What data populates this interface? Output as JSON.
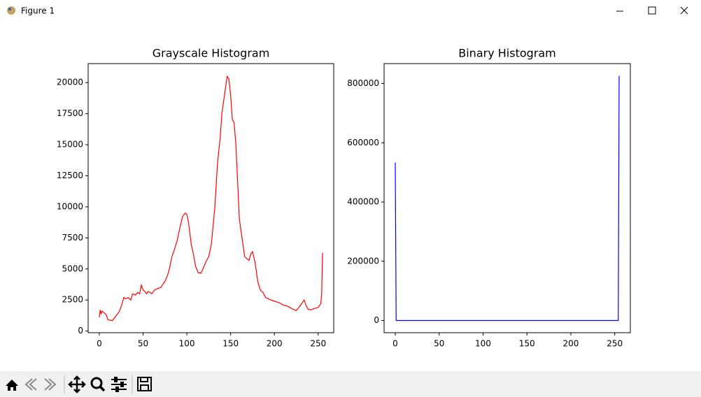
{
  "window": {
    "title": "Figure 1"
  },
  "chart_data": [
    {
      "type": "line",
      "title": "Grayscale Histogram",
      "color": "#ff0000",
      "x": [
        0,
        1,
        2,
        3,
        5,
        8,
        10,
        15,
        20,
        23,
        26,
        28,
        30,
        33,
        36,
        38,
        41,
        44,
        46,
        48,
        50,
        52,
        54,
        56,
        60,
        63,
        66,
        70,
        75,
        78,
        80,
        83,
        86,
        89,
        92,
        95,
        98,
        100,
        102,
        105,
        108,
        110,
        113,
        116,
        119,
        122,
        125,
        128,
        132,
        135,
        138,
        140,
        143,
        146,
        148,
        150,
        152,
        154,
        156,
        158,
        160,
        163,
        166,
        169,
        171,
        173,
        175,
        178,
        181,
        184,
        187,
        190,
        193,
        196,
        200,
        205,
        210,
        215,
        220,
        225,
        228,
        231,
        234,
        236,
        238,
        241,
        245,
        250,
        253,
        254,
        255
      ],
      "values": [
        1100,
        1700,
        1400,
        1600,
        1500,
        1300,
        900,
        850,
        1300,
        1600,
        2200,
        2700,
        2600,
        2700,
        2500,
        3000,
        2900,
        3100,
        3000,
        3700,
        3300,
        3200,
        3000,
        3200,
        3000,
        3300,
        3400,
        3500,
        4000,
        4500,
        5000,
        6000,
        6600,
        7300,
        8300,
        9200,
        9500,
        9400,
        8700,
        7000,
        6000,
        5200,
        4700,
        4650,
        5100,
        5600,
        6000,
        7000,
        10000,
        13500,
        15500,
        17500,
        19000,
        20500,
        20300,
        19000,
        17000,
        16800,
        15000,
        12000,
        9000,
        7500,
        6000,
        5800,
        5700,
        6200,
        6400,
        5500,
        4000,
        3300,
        3100,
        2700,
        2600,
        2500,
        2400,
        2300,
        2100,
        2000,
        1800,
        1650,
        1900,
        2200,
        2500,
        2100,
        1800,
        1700,
        1800,
        1900,
        2200,
        3000,
        6300
      ],
      "xlim": [
        -12.75,
        267.75
      ],
      "ylim": [
        -132,
        21532
      ],
      "xticks": [
        0,
        50,
        100,
        150,
        200,
        250
      ],
      "yticks": [
        0,
        2500,
        5000,
        7500,
        10000,
        12500,
        15000,
        17500,
        20000
      ]
    },
    {
      "type": "line",
      "title": "Binary Histogram",
      "color": "#0000ff",
      "x": [
        0,
        1,
        254,
        255
      ],
      "values": [
        533000,
        0,
        0,
        826000
      ],
      "xlim": [
        -12.75,
        267.75
      ],
      "ylim": [
        -41300,
        867300
      ],
      "xticks": [
        0,
        50,
        100,
        150,
        200,
        250
      ],
      "yticks": [
        0,
        200000,
        400000,
        600000,
        800000
      ]
    }
  ]
}
